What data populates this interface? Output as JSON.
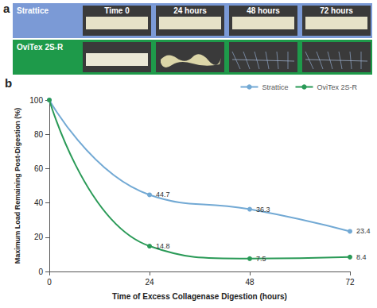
{
  "panel_a": {
    "label": "a",
    "columns": [
      "Time 0",
      "24 hours",
      "48 hours",
      "72 hours"
    ],
    "rows": [
      {
        "name": "Strattice",
        "color": "#7b9ad6"
      },
      {
        "name": "OviTex 2S-R",
        "color": "#1e9a4a"
      }
    ]
  },
  "panel_b_label": "b",
  "chart_data": {
    "type": "line",
    "x": [
      0,
      24,
      48,
      72
    ],
    "xlim": [
      0,
      72
    ],
    "xticks": [
      0,
      24,
      48,
      72
    ],
    "ylim": [
      0,
      100
    ],
    "yticks": [
      0,
      20,
      40,
      60,
      80,
      100
    ],
    "x_label": "Time of Excess Collagenase Digestion (hours)",
    "y_label": "Maximum Load Remaining Post-Digestion (%)",
    "series": [
      {
        "name": "Strattice",
        "color": "#72a9d4",
        "values": [
          100,
          44.7,
          36.3,
          23.4
        ],
        "value_labels": [
          null,
          "44.7",
          "36.3",
          "23.4"
        ]
      },
      {
        "name": "OviTex 2S-R",
        "color": "#2a9a57",
        "values": [
          100,
          14.8,
          7.5,
          8.4
        ],
        "value_labels": [
          null,
          "14.8",
          "7.5",
          "8.4"
        ]
      }
    ],
    "marker": "circle",
    "line_style": "smooth",
    "grid": false,
    "legend": "upper right",
    "data_labels": true
  }
}
